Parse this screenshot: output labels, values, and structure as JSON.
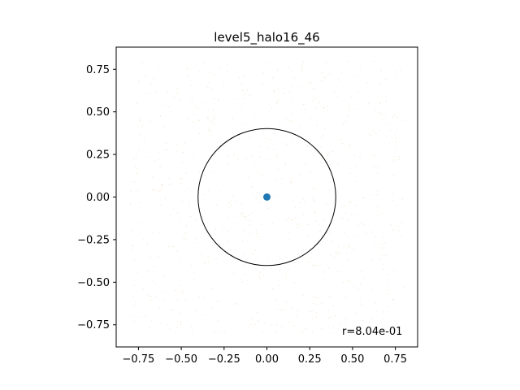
{
  "chart_data": {
    "type": "scatter",
    "title": "level5_halo16_46",
    "xlabel": "",
    "ylabel": "",
    "xlim": [
      -0.88,
      0.88
    ],
    "ylim": [
      -0.88,
      0.88
    ],
    "xticks": [
      -0.75,
      -0.5,
      -0.25,
      0.0,
      0.25,
      0.5,
      0.75
    ],
    "yticks": [
      -0.75,
      -0.5,
      -0.25,
      0.0,
      0.25,
      0.5,
      0.75
    ],
    "xtick_labels": [
      "−0.75",
      "−0.50",
      "−0.25",
      "0.00",
      "0.25",
      "0.50",
      "0.75"
    ],
    "ytick_labels": [
      "−0.75",
      "−0.50",
      "−0.25",
      "0.00",
      "0.25",
      "0.50",
      "0.75"
    ],
    "center_point": {
      "x": 0.0,
      "y": 0.0,
      "color": "#1f77b4"
    },
    "circle": {
      "cx": 0.0,
      "cy": 0.0,
      "r": 0.402,
      "color": "#000000"
    },
    "background_particles": {
      "color": "#f0d8b8",
      "extent": 0.8
    },
    "annotation": "r=8.04e-01",
    "grid": false,
    "legend": "none"
  }
}
